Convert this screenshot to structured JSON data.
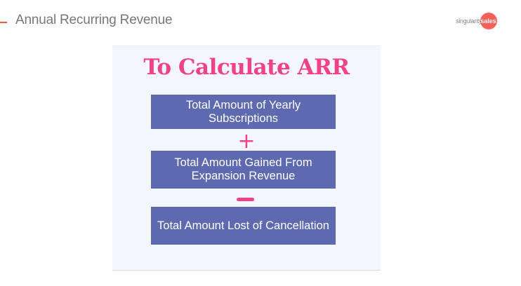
{
  "header": {
    "title": "Annual Recurring Revenue"
  },
  "logo": {
    "text_left": "singularity",
    "text_right": "sales"
  },
  "panel": {
    "title": "To Calculate ARR",
    "boxes": [
      "Total Amount of Yearly Subscriptions",
      "Total Amount Gained From Expansion Revenue",
      "Total Amount Lost of Cancellation"
    ],
    "operators": [
      "+",
      "−"
    ]
  },
  "colors": {
    "accent": "#ef4289",
    "box": "#5e6aaf",
    "panel_bg": "#f3f5ff",
    "logo": "#f56058"
  }
}
